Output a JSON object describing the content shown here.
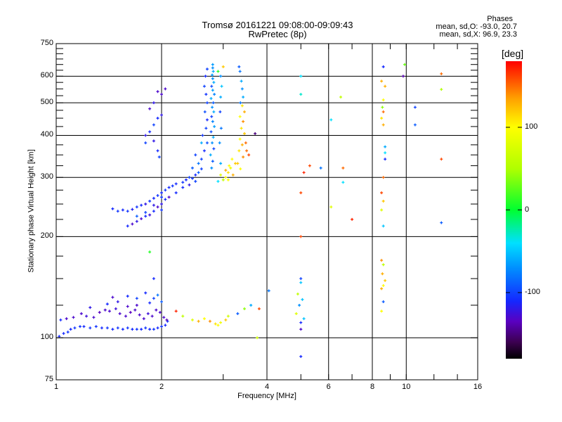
{
  "chart_data": {
    "type": "scatter",
    "title": "Tromsø 20161221 09:08:00-09:09:43",
    "subtitle": "RwPretec (8p)",
    "xlabel": "Frequency [MHz]",
    "ylabel": "Stationary phase Virtual Height [km]",
    "xscale": "log",
    "yscale": "log",
    "xlim": [
      1,
      16
    ],
    "ylim": [
      75,
      750
    ],
    "x_ticks": [
      1,
      2,
      4,
      6,
      8,
      10,
      16
    ],
    "x_tick_labels": [
      "1",
      "2",
      "4",
      "6",
      "8",
      "10",
      "16"
    ],
    "y_ticks": [
      75,
      100,
      200,
      300,
      400,
      500,
      600,
      750
    ],
    "y_tick_labels": [
      "75",
      "100",
      "200",
      "300",
      "400",
      "500",
      "600",
      "750"
    ],
    "grid": true,
    "stats": {
      "heading": "Phases",
      "o_line": "mean, sd,O: -93.0, 20.7",
      "x_line": "mean, sd,X:  96.9, 23.3"
    },
    "colorbar": {
      "label": "[deg]",
      "range": [
        -180,
        180
      ],
      "ticks": [
        100,
        0,
        -100
      ],
      "tick_labels": [
        "100",
        "0",
        "-100"
      ],
      "stops": [
        [
          -180,
          "#000000"
        ],
        [
          -160,
          "#3c0050"
        ],
        [
          -135,
          "#5a00c0"
        ],
        [
          -110,
          "#1428ff"
        ],
        [
          -70,
          "#0090ff"
        ],
        [
          -40,
          "#00e0ff"
        ],
        [
          0,
          "#00ff30"
        ],
        [
          50,
          "#b0ff00"
        ],
        [
          100,
          "#ffff00"
        ],
        [
          135,
          "#ffa000"
        ],
        [
          180,
          "#ff0000"
        ]
      ]
    },
    "point_format": [
      "frequency_MHz",
      "height_km",
      "phase_deg"
    ],
    "points": [
      [
        1.02,
        101,
        -110
      ],
      [
        1.05,
        103,
        -110
      ],
      [
        1.08,
        104,
        -105
      ],
      [
        1.1,
        106,
        -110
      ],
      [
        1.13,
        107,
        -105
      ],
      [
        1.17,
        108,
        -105
      ],
      [
        1.2,
        108,
        -110
      ],
      [
        1.25,
        107,
        -105
      ],
      [
        1.3,
        108,
        -105
      ],
      [
        1.35,
        107,
        -110
      ],
      [
        1.4,
        107,
        -105
      ],
      [
        1.45,
        106,
        -110
      ],
      [
        1.5,
        107,
        -105
      ],
      [
        1.55,
        106,
        -110
      ],
      [
        1.6,
        107,
        -105
      ],
      [
        1.65,
        106,
        -110
      ],
      [
        1.7,
        106,
        -105
      ],
      [
        1.75,
        106,
        -110
      ],
      [
        1.8,
        107,
        -105
      ],
      [
        1.85,
        106,
        -110
      ],
      [
        1.9,
        106,
        -105
      ],
      [
        1.95,
        107,
        -110
      ],
      [
        2.0,
        108,
        -105
      ],
      [
        2.05,
        109,
        -110
      ],
      [
        2.08,
        112,
        -105
      ],
      [
        1.03,
        113,
        -110
      ],
      [
        1.07,
        114,
        -130
      ],
      [
        1.12,
        115,
        -130
      ],
      [
        1.18,
        118,
        -130
      ],
      [
        1.22,
        116,
        -125
      ],
      [
        1.28,
        115,
        -130
      ],
      [
        1.33,
        119,
        -135
      ],
      [
        1.38,
        121,
        -130
      ],
      [
        1.42,
        120,
        -130
      ],
      [
        1.48,
        122,
        -125
      ],
      [
        1.52,
        118,
        -130
      ],
      [
        1.58,
        116,
        -130
      ],
      [
        1.63,
        119,
        -135
      ],
      [
        1.68,
        121,
        -130
      ],
      [
        1.73,
        117,
        -130
      ],
      [
        1.78,
        114,
        -130
      ],
      [
        1.83,
        118,
        -125
      ],
      [
        1.88,
        116,
        -130
      ],
      [
        1.93,
        121,
        -130
      ],
      [
        1.98,
        119,
        -130
      ],
      [
        2.03,
        115,
        -130
      ],
      [
        2.07,
        113,
        -135
      ],
      [
        1.25,
        123,
        -120
      ],
      [
        1.4,
        126,
        -110
      ],
      [
        1.5,
        128,
        -120
      ],
      [
        1.6,
        124,
        -130
      ],
      [
        1.7,
        125,
        -130
      ],
      [
        1.45,
        132,
        -130
      ],
      [
        1.85,
        127,
        -110
      ],
      [
        1.9,
        131,
        -100
      ],
      [
        1.95,
        134,
        -80
      ],
      [
        2.0,
        128,
        -90
      ],
      [
        1.8,
        136,
        -110
      ],
      [
        1.6,
        133,
        -110
      ],
      [
        1.7,
        131,
        -100
      ],
      [
        1.85,
        180,
        10
      ],
      [
        1.9,
        150,
        -110
      ],
      [
        2.2,
        120,
        170
      ],
      [
        2.3,
        116,
        60
      ],
      [
        2.45,
        113,
        80
      ],
      [
        2.55,
        112,
        130
      ],
      [
        2.65,
        114,
        100
      ],
      [
        2.75,
        112,
        140
      ],
      [
        2.85,
        110,
        110
      ],
      [
        2.9,
        109,
        100
      ],
      [
        2.95,
        111,
        90
      ],
      [
        3.05,
        113,
        120
      ],
      [
        3.1,
        116,
        70
      ],
      [
        3.3,
        118,
        -90
      ],
      [
        3.45,
        122,
        40
      ],
      [
        3.6,
        125,
        -60
      ],
      [
        3.8,
        122,
        160
      ],
      [
        4.05,
        138,
        -80
      ],
      [
        3.75,
        100,
        70
      ],
      [
        1.45,
        242,
        -110
      ],
      [
        1.5,
        238,
        -105
      ],
      [
        1.55,
        240,
        -110
      ],
      [
        1.6,
        238,
        -105
      ],
      [
        1.65,
        241,
        -115
      ],
      [
        1.7,
        245,
        -105
      ],
      [
        1.75,
        248,
        -110
      ],
      [
        1.8,
        250,
        -120
      ],
      [
        1.85,
        255,
        -105
      ],
      [
        1.9,
        260,
        -110
      ],
      [
        1.95,
        265,
        -105
      ],
      [
        2.0,
        270,
        -110
      ],
      [
        2.05,
        275,
        -105
      ],
      [
        2.1,
        280,
        -110
      ],
      [
        2.15,
        283,
        -105
      ],
      [
        2.2,
        287,
        -110
      ],
      [
        1.6,
        215,
        -110
      ],
      [
        1.65,
        218,
        -130
      ],
      [
        1.7,
        222,
        -120
      ],
      [
        1.75,
        226,
        -130
      ],
      [
        1.8,
        230,
        -110
      ],
      [
        1.85,
        232,
        -125
      ],
      [
        1.9,
        238,
        -110
      ],
      [
        1.95,
        245,
        -130
      ],
      [
        2.0,
        250,
        -120
      ],
      [
        2.05,
        258,
        -110
      ],
      [
        2.1,
        262,
        -130
      ],
      [
        1.7,
        230,
        -90
      ],
      [
        1.8,
        236,
        -100
      ],
      [
        1.9,
        248,
        -120
      ],
      [
        2.0,
        240,
        -105
      ],
      [
        2.0,
        262,
        -105
      ],
      [
        2.3,
        290,
        -105
      ],
      [
        2.35,
        295,
        -110
      ],
      [
        2.4,
        300,
        -100
      ],
      [
        2.45,
        298,
        -105
      ],
      [
        2.5,
        305,
        -110
      ],
      [
        2.55,
        310,
        -90
      ],
      [
        2.6,
        318,
        -100
      ],
      [
        2.3,
        280,
        -110
      ],
      [
        2.4,
        285,
        -120
      ],
      [
        2.5,
        292,
        -100
      ],
      [
        2.2,
        270,
        -110
      ],
      [
        2.78,
        320,
        -70
      ],
      [
        2.8,
        335,
        -90
      ],
      [
        2.76,
        350,
        -60
      ],
      [
        2.82,
        365,
        -100
      ],
      [
        2.79,
        380,
        -70
      ],
      [
        2.81,
        395,
        -60
      ],
      [
        2.77,
        410,
        -95
      ],
      [
        2.83,
        425,
        -65
      ],
      [
        2.8,
        440,
        -75
      ],
      [
        2.78,
        455,
        -100
      ],
      [
        2.82,
        470,
        -60
      ],
      [
        2.79,
        485,
        -70
      ],
      [
        2.81,
        500,
        -90
      ],
      [
        2.77,
        515,
        -60
      ],
      [
        2.83,
        530,
        -75
      ],
      [
        2.8,
        545,
        -65
      ],
      [
        2.78,
        560,
        -95
      ],
      [
        2.82,
        575,
        -60
      ],
      [
        2.8,
        590,
        -70
      ],
      [
        2.79,
        605,
        -65
      ],
      [
        2.81,
        620,
        -60
      ],
      [
        2.8,
        635,
        -70
      ],
      [
        2.8,
        650,
        -65
      ],
      [
        2.6,
        340,
        -100
      ],
      [
        2.65,
        360,
        -110
      ],
      [
        2.7,
        380,
        -95
      ],
      [
        2.62,
        400,
        -105
      ],
      [
        2.68,
        420,
        -100
      ],
      [
        2.7,
        445,
        -110
      ],
      [
        2.66,
        470,
        -95
      ],
      [
        2.7,
        500,
        -100
      ],
      [
        2.68,
        530,
        -105
      ],
      [
        2.65,
        560,
        -100
      ],
      [
        2.67,
        600,
        -110
      ],
      [
        2.7,
        630,
        -100
      ],
      [
        2.55,
        330,
        -80
      ],
      [
        2.5,
        350,
        -100
      ],
      [
        2.45,
        320,
        -90
      ],
      [
        2.6,
        380,
        -60
      ],
      [
        2.95,
        330,
        -60
      ],
      [
        2.93,
        380,
        -70
      ],
      [
        2.96,
        420,
        -80
      ],
      [
        2.94,
        470,
        -100
      ],
      [
        2.95,
        520,
        -60
      ],
      [
        2.97,
        560,
        -50
      ],
      [
        2.95,
        600,
        -70
      ],
      [
        2.9,
        620,
        10
      ],
      [
        3.0,
        640,
        120
      ],
      [
        3.35,
        620,
        -80
      ],
      [
        3.38,
        580,
        -60
      ],
      [
        3.4,
        550,
        -70
      ],
      [
        3.33,
        640,
        -90
      ],
      [
        3.42,
        520,
        -60
      ],
      [
        3.36,
        500,
        -80
      ],
      [
        3.4,
        490,
        110
      ],
      [
        3.45,
        470,
        130
      ],
      [
        3.35,
        455,
        100
      ],
      [
        3.42,
        440,
        140
      ],
      [
        3.38,
        420,
        110
      ],
      [
        3.45,
        405,
        120
      ],
      [
        3.35,
        390,
        100
      ],
      [
        3.4,
        375,
        130
      ],
      [
        3.33,
        360,
        110
      ],
      [
        3.42,
        345,
        140
      ],
      [
        3.3,
        330,
        120
      ],
      [
        3.36,
        318,
        100
      ],
      [
        3.5,
        360,
        150
      ],
      [
        3.55,
        350,
        160
      ],
      [
        3.48,
        380,
        150
      ],
      [
        3.7,
        405,
        -150
      ],
      [
        3.05,
        300,
        100
      ],
      [
        3.1,
        310,
        110
      ],
      [
        3.15,
        320,
        90
      ],
      [
        3.2,
        305,
        130
      ],
      [
        3.0,
        295,
        60
      ],
      [
        3.1,
        295,
        100
      ],
      [
        3.25,
        330,
        120
      ],
      [
        3.18,
        340,
        100
      ],
      [
        2.95,
        305,
        80
      ],
      [
        3.05,
        315,
        130
      ],
      [
        3.12,
        325,
        100
      ],
      [
        2.9,
        292,
        -40
      ],
      [
        1.8,
        400,
        -120
      ],
      [
        1.85,
        410,
        -110
      ],
      [
        1.9,
        430,
        -100
      ],
      [
        1.95,
        450,
        -110
      ],
      [
        2.0,
        460,
        -120
      ],
      [
        1.85,
        480,
        -130
      ],
      [
        1.9,
        500,
        -120
      ],
      [
        2.0,
        530,
        -130
      ],
      [
        2.05,
        550,
        -130
      ],
      [
        1.95,
        540,
        -130
      ],
      [
        1.8,
        380,
        -100
      ],
      [
        1.9,
        385,
        -120
      ],
      [
        1.95,
        360,
        -110
      ],
      [
        1.97,
        345,
        -100
      ],
      [
        5.0,
        600,
        -40
      ],
      [
        5.0,
        530,
        -30
      ],
      [
        6.5,
        520,
        60
      ],
      [
        6.1,
        445,
        -40
      ],
      [
        5.7,
        320,
        -80
      ],
      [
        6.6,
        320,
        150
      ],
      [
        6.6,
        290,
        -40
      ],
      [
        5.3,
        325,
        160
      ],
      [
        5.1,
        310,
        170
      ],
      [
        5.0,
        270,
        160
      ],
      [
        6.1,
        245,
        80
      ],
      [
        7.0,
        225,
        170
      ],
      [
        5.0,
        200,
        160
      ],
      [
        5.0,
        150,
        -100
      ],
      [
        5.0,
        146,
        -50
      ],
      [
        4.9,
        135,
        60
      ],
      [
        5.05,
        130,
        -50
      ],
      [
        4.85,
        118,
        80
      ],
      [
        5.0,
        111,
        -110
      ],
      [
        5.0,
        106,
        -130
      ],
      [
        5.0,
        88,
        -110
      ],
      [
        4.95,
        125,
        -70
      ],
      [
        5.1,
        114,
        -50
      ],
      [
        8.6,
        640,
        -110
      ],
      [
        8.5,
        580,
        130
      ],
      [
        8.7,
        560,
        130
      ],
      [
        8.6,
        510,
        100
      ],
      [
        8.55,
        485,
        40
      ],
      [
        8.6,
        470,
        150
      ],
      [
        8.5,
        450,
        110
      ],
      [
        8.6,
        430,
        130
      ],
      [
        8.7,
        370,
        -60
      ],
      [
        8.7,
        355,
        -40
      ],
      [
        8.7,
        340,
        -110
      ],
      [
        8.6,
        300,
        150
      ],
      [
        8.5,
        270,
        160
      ],
      [
        8.6,
        255,
        120
      ],
      [
        8.5,
        240,
        80
      ],
      [
        8.6,
        215,
        -50
      ],
      [
        8.5,
        170,
        140
      ],
      [
        8.6,
        165,
        60
      ],
      [
        8.55,
        155,
        130
      ],
      [
        8.7,
        148,
        120
      ],
      [
        8.6,
        143,
        100
      ],
      [
        8.5,
        140,
        130
      ],
      [
        8.6,
        128,
        -90
      ],
      [
        8.5,
        120,
        100
      ],
      [
        9.9,
        650,
        30
      ],
      [
        9.8,
        600,
        -140
      ],
      [
        10.6,
        485,
        -100
      ],
      [
        10.6,
        430,
        -90
      ],
      [
        12.6,
        610,
        150
      ],
      [
        12.6,
        548,
        50
      ],
      [
        12.6,
        340,
        160
      ],
      [
        12.6,
        220,
        -90
      ]
    ]
  }
}
